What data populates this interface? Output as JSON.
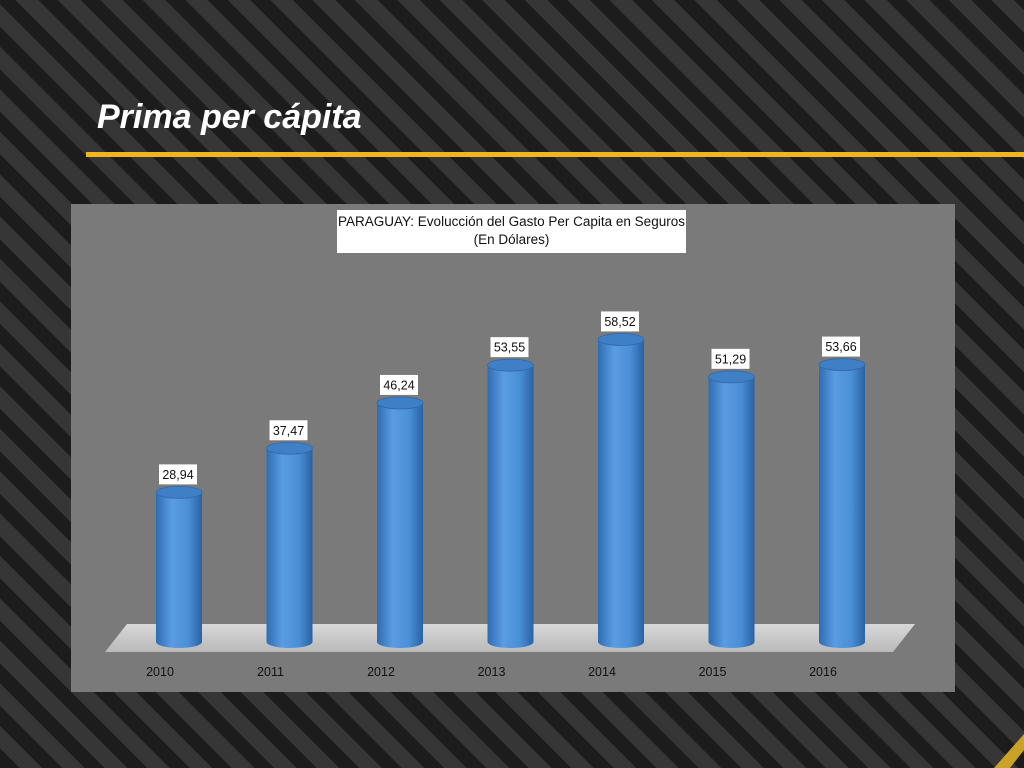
{
  "slide": {
    "title": "Prima per cápita",
    "colors": {
      "accent": "#f2b51f",
      "background": "#1e1e1e",
      "panel": "#7a7a7a",
      "bar": "#4a8fd6"
    }
  },
  "chart_data": {
    "type": "bar",
    "title": "PARAGUAY: Evolucción del Gasto  Per Capita en Seguros",
    "subtitle": "(En Dólares)",
    "categories": [
      "2010",
      "2011",
      "2012",
      "2013",
      "2014",
      "2015",
      "2016"
    ],
    "values": [
      28.94,
      37.47,
      46.24,
      53.55,
      58.52,
      51.29,
      53.66
    ],
    "value_labels": [
      "28,94",
      "37,47",
      "46,24",
      "53,55",
      "58,52",
      "51,29",
      "53,66"
    ],
    "bar_shape": "cylinder",
    "xlabel": "",
    "ylabel": "",
    "ylim": [
      0,
      70
    ],
    "grid": false,
    "legend": "none"
  }
}
